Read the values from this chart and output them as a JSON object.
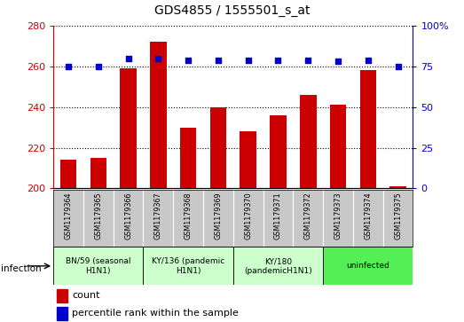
{
  "title": "GDS4855 / 1555501_s_at",
  "samples": [
    "GSM1179364",
    "GSM1179365",
    "GSM1179366",
    "GSM1179367",
    "GSM1179368",
    "GSM1179369",
    "GSM1179370",
    "GSM1179371",
    "GSM1179372",
    "GSM1179373",
    "GSM1179374",
    "GSM1179375"
  ],
  "counts": [
    214,
    215,
    259,
    272,
    230,
    240,
    228,
    236,
    246,
    241,
    258,
    201
  ],
  "percentiles": [
    75,
    75,
    80,
    80,
    79,
    79,
    79,
    79,
    79,
    78,
    79,
    75
  ],
  "ylim_left": [
    200,
    280
  ],
  "ylim_right": [
    0,
    100
  ],
  "yticks_left": [
    200,
    220,
    240,
    260,
    280
  ],
  "yticks_right": [
    0,
    25,
    50,
    75,
    100
  ],
  "bar_color": "#cc0000",
  "dot_color": "#0000cc",
  "groups": [
    {
      "label": "BN/59 (seasonal\nH1N1)",
      "start": 0,
      "end": 3,
      "color": "#ccffcc"
    },
    {
      "label": "KY/136 (pandemic\nH1N1)",
      "start": 3,
      "end": 6,
      "color": "#ccffcc"
    },
    {
      "label": "KY/180\n(pandemicH1N1)",
      "start": 6,
      "end": 9,
      "color": "#ccffcc"
    },
    {
      "label": "uninfected",
      "start": 9,
      "end": 12,
      "color": "#55ee55"
    }
  ],
  "infection_label": "infection",
  "legend_count_label": "count",
  "legend_pct_label": "percentile rank within the sample",
  "ymin": 200,
  "title_fontsize": 10,
  "label_area_color": "#c8c8c8",
  "grid_color": "#000000"
}
